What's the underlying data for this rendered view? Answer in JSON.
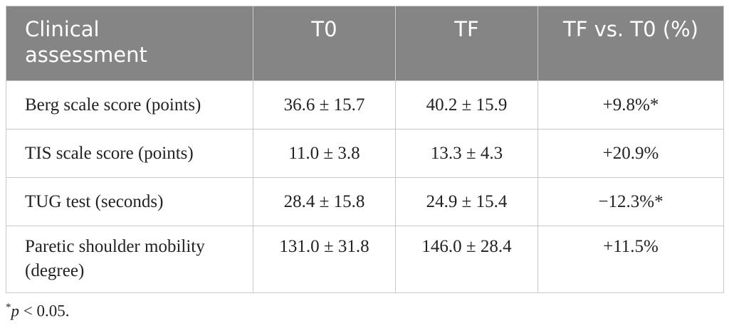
{
  "table": {
    "header": [
      "Clinical assessment",
      "T0",
      "TF",
      "TF vs. T0 (%)"
    ],
    "rows": [
      [
        "Berg scale score (points)",
        "36.6 ± 15.7",
        "40.2 ± 15.9",
        "+9.8%*"
      ],
      [
        "TIS scale score (points)",
        "11.0 ± 3.8",
        "13.3 ± 4.3",
        "+20.9%"
      ],
      [
        "TUG test (seconds)",
        "28.4 ± 15.8",
        "24.9 ± 15.4",
        "−12.3%*"
      ],
      [
        "Paretic shoulder mobility (degree)",
        "131.0 ± 31.8",
        "146.0 ± 28.4",
        "+11.5%"
      ]
    ]
  },
  "footnote": {
    "symbol": "*",
    "variable": "p",
    "condition": " < 0.05."
  }
}
